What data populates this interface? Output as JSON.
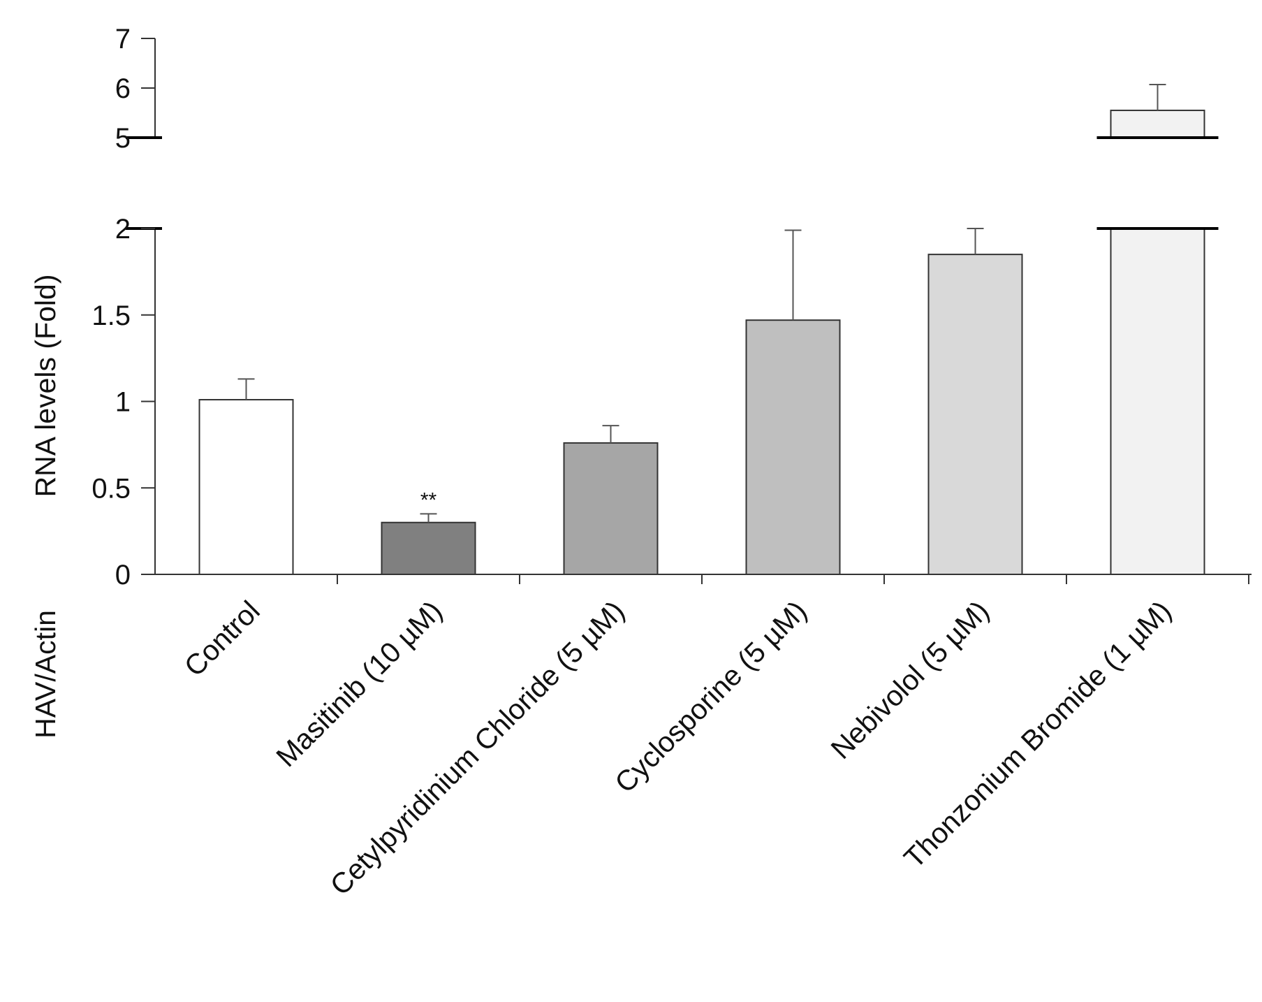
{
  "chart_data": {
    "type": "bar",
    "title": "",
    "xlabel": "",
    "ylabel_left": "HAV/Actin",
    "ylabel_right": "RNA levels (Fold)",
    "categories": [
      "Control",
      "Masitinib  (10 µM)",
      "Cetylpyridinium Chloride (5 µM)",
      "Cyclosporine (5 µM)",
      "Nebivolol (5 µM)",
      "Thonzonium Bromide (1 µM)"
    ],
    "values": [
      1.01,
      0.3,
      0.76,
      1.47,
      1.85,
      5.55
    ],
    "errors": [
      0.12,
      0.05,
      0.1,
      0.52,
      0.15,
      0.52
    ],
    "colors": [
      "#ffffff",
      "#808080",
      "#a6a6a6",
      "#bfbfbf",
      "#d9d9d9",
      "#f2f2f2"
    ],
    "annotations": [
      {
        "category_index": 1,
        "text": "**"
      }
    ],
    "y_broken_axis": true,
    "ylim_lower": [
      0,
      2
    ],
    "ylim_upper": [
      5,
      7
    ],
    "yticks_lower": [
      0,
      0.5,
      1,
      1.5,
      2
    ],
    "yticks_upper": [
      5,
      6,
      7
    ],
    "ytick_labels_lower": [
      "0",
      "0.5",
      "1",
      "1.5",
      "2"
    ],
    "ytick_labels_upper": [
      "5",
      "6",
      "7"
    ],
    "grid": false,
    "legend": "none",
    "colors_axis": "#333333"
  }
}
